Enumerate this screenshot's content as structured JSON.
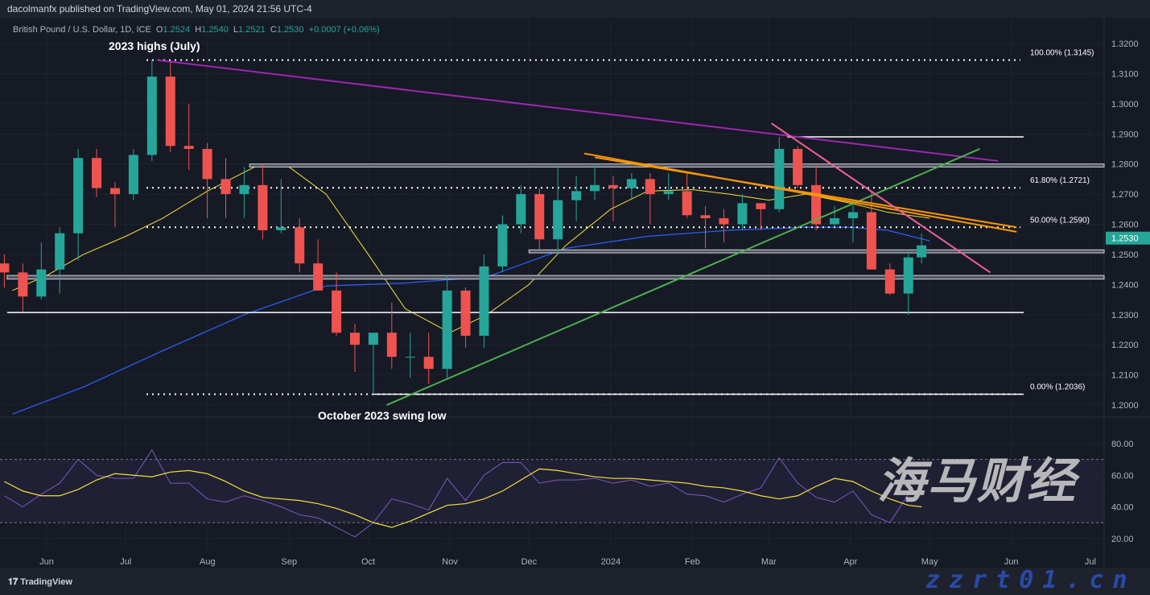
{
  "header": {
    "published": "dacolmanfx published on TradingView.com, May 01, 2024 21:56 UTC-4",
    "symbol": "British Pound / U.S. Dollar, 1D, ICE",
    "o_label": "O",
    "o": "1.2524",
    "h_label": "H",
    "h": "1.2540",
    "l_label": "L",
    "l": "1.2521",
    "c_label": "C",
    "c": "1.2530",
    "change": "+0.0007 (+0.06%)"
  },
  "footer": {
    "logo": "TradingView"
  },
  "watermark": {
    "title": "海马财经",
    "site": "zzrt01.cn"
  },
  "colors": {
    "background": "#131722",
    "up": "#26a69a",
    "down": "#ef5350",
    "ma_fast": "#f5e13b",
    "ma_slow": "#2962ff",
    "rsi": "#7e57c2",
    "rsi_ma": "#f5e13b",
    "last_price": "#26a69a"
  },
  "chart_data": {
    "type": "candlestick",
    "symbol": "GBP/USD",
    "ylim": [
      1.195,
      1.325
    ],
    "y_ticks": [
      "1.2000",
      "1.2100",
      "1.2200",
      "1.2300",
      "1.2400",
      "1.2500",
      "1.2600",
      "1.2700",
      "1.2800",
      "1.2900",
      "1.3000",
      "1.3100",
      "1.3200"
    ],
    "x_ticks": [
      {
        "label": "Jun",
        "date": "2023-06-01"
      },
      {
        "label": "Jul",
        "date": "2023-07-01"
      },
      {
        "label": "Aug",
        "date": "2023-08-01"
      },
      {
        "label": "Sep",
        "date": "2023-09-01"
      },
      {
        "label": "Oct",
        "date": "2023-10-01"
      },
      {
        "label": "Nov",
        "date": "2023-11-01"
      },
      {
        "label": "Dec",
        "date": "2023-12-01"
      },
      {
        "label": "2024",
        "date": "2024-01-01"
      },
      {
        "label": "Feb",
        "date": "2024-02-01"
      },
      {
        "label": "Mar",
        "date": "2024-03-01"
      },
      {
        "label": "Apr",
        "date": "2024-04-01"
      },
      {
        "label": "May",
        "date": "2024-05-01"
      },
      {
        "label": "Jun",
        "date": "2024-06-01"
      },
      {
        "label": "Jul",
        "date": "2024-07-01"
      }
    ],
    "last_price": "1.2530",
    "candles": [
      [
        "2023-05-19",
        1.247,
        1.25,
        1.239,
        1.244
      ],
      [
        "2023-05-26",
        1.244,
        1.247,
        1.231,
        1.236
      ],
      [
        "2023-06-02",
        1.236,
        1.254,
        1.235,
        1.245
      ],
      [
        "2023-06-09",
        1.245,
        1.259,
        1.237,
        1.257
      ],
      [
        "2023-06-16",
        1.257,
        1.285,
        1.248,
        1.282
      ],
      [
        "2023-06-23",
        1.282,
        1.285,
        1.269,
        1.272
      ],
      [
        "2023-06-30",
        1.272,
        1.274,
        1.259,
        1.27
      ],
      [
        "2023-07-07",
        1.27,
        1.285,
        1.268,
        1.283
      ],
      [
        "2023-07-14",
        1.283,
        1.3145,
        1.281,
        1.309
      ],
      [
        "2023-07-21",
        1.309,
        1.314,
        1.284,
        1.286
      ],
      [
        "2023-07-28",
        1.286,
        1.3,
        1.278,
        1.285
      ],
      [
        "2023-08-04",
        1.285,
        1.287,
        1.262,
        1.275
      ],
      [
        "2023-08-11",
        1.275,
        1.282,
        1.262,
        1.27
      ],
      [
        "2023-08-18",
        1.27,
        1.279,
        1.262,
        1.273
      ],
      [
        "2023-08-25",
        1.273,
        1.28,
        1.255,
        1.258
      ],
      [
        "2023-09-01",
        1.258,
        1.275,
        1.257,
        1.259
      ],
      [
        "2023-09-08",
        1.259,
        1.262,
        1.244,
        1.247
      ],
      [
        "2023-09-15",
        1.247,
        1.255,
        1.238,
        1.238
      ],
      [
        "2023-09-22",
        1.238,
        1.244,
        1.223,
        1.224
      ],
      [
        "2023-09-29",
        1.224,
        1.227,
        1.211,
        1.22
      ],
      [
        "2023-10-06",
        1.22,
        1.224,
        1.2036,
        1.224
      ],
      [
        "2023-10-13",
        1.224,
        1.234,
        1.212,
        1.216
      ],
      [
        "2023-10-20",
        1.216,
        1.224,
        1.209,
        1.216
      ],
      [
        "2023-10-27",
        1.216,
        1.224,
        1.207,
        1.212
      ],
      [
        "2023-11-03",
        1.212,
        1.243,
        1.209,
        1.238
      ],
      [
        "2023-11-10",
        1.238,
        1.239,
        1.219,
        1.223
      ],
      [
        "2023-11-17",
        1.223,
        1.25,
        1.219,
        1.246
      ],
      [
        "2023-11-24",
        1.246,
        1.263,
        1.244,
        1.26
      ],
      [
        "2023-12-01",
        1.26,
        1.273,
        1.257,
        1.27
      ],
      [
        "2023-12-08",
        1.27,
        1.272,
        1.251,
        1.255
      ],
      [
        "2023-12-15",
        1.255,
        1.279,
        1.25,
        1.268
      ],
      [
        "2023-12-22",
        1.268,
        1.276,
        1.261,
        1.271
      ],
      [
        "2023-12-29",
        1.271,
        1.28,
        1.268,
        1.273
      ],
      [
        "2024-01-05",
        1.273,
        1.276,
        1.261,
        1.272
      ],
      [
        "2024-01-12",
        1.272,
        1.277,
        1.268,
        1.275
      ],
      [
        "2024-01-19",
        1.275,
        1.277,
        1.26,
        1.27
      ],
      [
        "2024-01-26",
        1.27,
        1.277,
        1.268,
        1.271
      ],
      [
        "2024-02-02",
        1.271,
        1.277,
        1.262,
        1.263
      ],
      [
        "2024-02-09",
        1.263,
        1.266,
        1.252,
        1.262
      ],
      [
        "2024-02-16",
        1.262,
        1.265,
        1.254,
        1.26
      ],
      [
        "2024-02-23",
        1.26,
        1.27,
        1.258,
        1.267
      ],
      [
        "2024-03-01",
        1.267,
        1.267,
        1.258,
        1.265
      ],
      [
        "2024-03-08",
        1.265,
        1.289,
        1.264,
        1.285
      ],
      [
        "2024-03-15",
        1.285,
        1.286,
        1.272,
        1.273
      ],
      [
        "2024-03-22",
        1.273,
        1.28,
        1.258,
        1.26
      ],
      [
        "2024-03-29",
        1.26,
        1.266,
        1.259,
        1.262
      ],
      [
        "2024-04-05",
        1.262,
        1.268,
        1.254,
        1.264
      ],
      [
        "2024-04-12",
        1.264,
        1.271,
        1.245,
        1.245
      ],
      [
        "2024-04-19",
        1.245,
        1.247,
        1.2365,
        1.237
      ],
      [
        "2024-04-26",
        1.237,
        1.251,
        1.2299,
        1.249
      ],
      [
        "2024-05-01",
        1.249,
        1.257,
        1.247,
        1.253
      ]
    ],
    "ma_fast": [
      [
        "2023-05-19",
        1.238
      ],
      [
        "2023-06-01",
        1.243
      ],
      [
        "2023-06-15",
        1.25
      ],
      [
        "2023-07-01",
        1.256
      ],
      [
        "2023-07-15",
        1.262
      ],
      [
        "2023-08-01",
        1.271
      ],
      [
        "2023-08-20",
        1.2795
      ],
      [
        "2023-09-01",
        1.279
      ],
      [
        "2023-09-15",
        1.27
      ],
      [
        "2023-10-01",
        1.25
      ],
      [
        "2023-10-15",
        1.232
      ],
      [
        "2023-11-01",
        1.224
      ],
      [
        "2023-11-15",
        1.23
      ],
      [
        "2023-12-01",
        1.24
      ],
      [
        "2023-12-15",
        1.253
      ],
      [
        "2024-01-01",
        1.265
      ],
      [
        "2024-01-15",
        1.271
      ],
      [
        "2024-02-01",
        1.2715
      ],
      [
        "2024-02-15",
        1.27
      ],
      [
        "2024-03-01",
        1.268
      ],
      [
        "2024-03-15",
        1.27
      ],
      [
        "2024-04-01",
        1.267
      ],
      [
        "2024-04-15",
        1.264
      ],
      [
        "2024-05-01",
        1.262
      ]
    ],
    "ma_slow": [
      [
        "2023-05-19",
        1.197
      ],
      [
        "2023-06-15",
        1.206
      ],
      [
        "2023-07-15",
        1.218
      ],
      [
        "2023-08-15",
        1.23
      ],
      [
        "2023-09-15",
        1.2395
      ],
      [
        "2023-10-15",
        1.2405
      ],
      [
        "2023-11-15",
        1.2425
      ],
      [
        "2023-12-15",
        1.252
      ],
      [
        "2024-01-15",
        1.256
      ],
      [
        "2024-02-15",
        1.258
      ],
      [
        "2024-03-15",
        1.259
      ],
      [
        "2024-04-01",
        1.259
      ],
      [
        "2024-04-15",
        1.258
      ],
      [
        "2024-05-01",
        1.2545
      ]
    ],
    "fib_levels": [
      {
        "label": "100.00% (1.3145)",
        "value": 1.3145
      },
      {
        "label": "61.80% (1.2721)",
        "value": 1.2721
      },
      {
        "label": "50.00% (1.2590)",
        "value": 1.259
      },
      {
        "label": "0.00% (1.2036)",
        "value": 1.2036
      }
    ],
    "horizontal_levels": [
      {
        "value": 1.289,
        "from": "2024-03-08",
        "kind": "line"
      },
      {
        "value": 1.28,
        "value2": 1.279,
        "from": "2023-08-17",
        "kind": "zone"
      },
      {
        "value": 1.2515,
        "value2": 1.2505,
        "from": "2023-12-01",
        "kind": "zone"
      },
      {
        "value": 1.243,
        "value2": 1.2418,
        "from": "2023-05-17",
        "kind": "zone"
      },
      {
        "value": 1.2307,
        "from": "2023-05-17",
        "kind": "line"
      },
      {
        "value": 1.2036,
        "from": "2023-10-03",
        "kind": "line"
      }
    ],
    "trendlines": [
      {
        "color": "#9c27b0",
        "from": [
          "2023-07-13",
          1.3145
        ],
        "to": [
          "2024-05-27",
          1.281
        ]
      },
      {
        "color": "#4caf50",
        "from": [
          "2023-10-08",
          1.2
        ],
        "to": [
          "2024-05-20",
          1.285
        ]
      },
      {
        "color": "#ff9800",
        "from": [
          "2023-12-22",
          1.2835
        ],
        "to": [
          "2024-06-03",
          1.2575
        ]
      },
      {
        "color": "#ff9800",
        "from": [
          "2023-12-26",
          1.2822
        ],
        "to": [
          "2024-06-03",
          1.259
        ]
      },
      {
        "color": "#f06292",
        "from": [
          "2024-03-02",
          1.2935
        ],
        "to": [
          "2024-05-24",
          1.244
        ]
      }
    ],
    "annotations": [
      {
        "text": "2023 highs (July)",
        "date": "2023-07-13",
        "value": 1.3145
      },
      {
        "text": "October 2023 swing low",
        "date": "2023-10-06",
        "value": 1.2036
      }
    ],
    "rsi": {
      "ylim": [
        12,
        85
      ],
      "y_ticks": [
        "20.00",
        "40.00",
        "60.00",
        "80.00"
      ],
      "bands": [
        30,
        70
      ],
      "values": [
        47,
        40,
        48,
        55,
        70,
        60,
        58,
        58,
        76,
        55,
        55,
        45,
        43,
        47,
        44,
        40,
        35,
        33,
        27,
        21,
        30,
        45,
        42,
        38,
        58,
        44,
        60,
        68,
        68,
        55,
        57,
        57,
        58,
        55,
        57,
        53,
        55,
        48,
        47,
        43,
        48,
        52,
        71,
        55,
        46,
        43,
        50,
        35,
        30,
        48,
        50
      ],
      "ma": [
        56,
        50,
        47,
        47,
        51,
        57,
        61,
        60,
        59,
        62,
        63,
        61,
        56,
        50,
        46,
        45,
        44,
        42,
        39,
        35,
        30,
        27,
        31,
        36,
        41,
        42,
        45,
        50,
        57,
        64,
        63,
        61,
        59,
        58,
        58,
        57,
        56,
        55,
        53,
        52,
        50,
        47,
        45,
        47,
        53,
        58,
        56,
        50,
        45,
        41,
        40
      ]
    }
  }
}
